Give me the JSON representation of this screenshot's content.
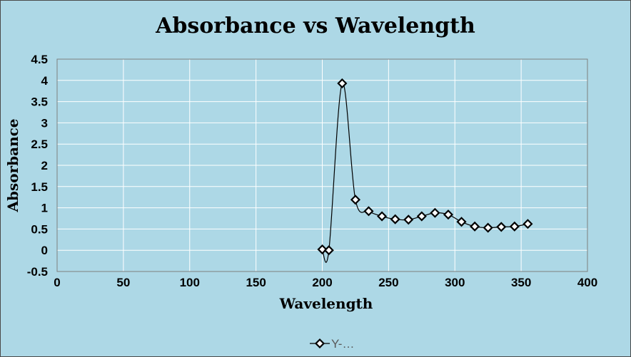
{
  "chart_data": {
    "type": "scatter",
    "title": "Absorbance vs Wavelength",
    "xlabel": "Wavelength",
    "ylabel": "Absorbance",
    "xlim": [
      0,
      400
    ],
    "ylim": [
      -0.5,
      4.5
    ],
    "x_ticks": [
      "0",
      "50",
      "100",
      "150",
      "200",
      "250",
      "300",
      "350",
      "400"
    ],
    "y_ticks": [
      "4.5",
      "4",
      "3.5",
      "3",
      "2.5",
      "2",
      "1.5",
      "1",
      "0.5",
      "0",
      "-0.5"
    ],
    "grid": true,
    "legend_position": "bottom",
    "marker": "diamond",
    "line": "smooth",
    "series": [
      {
        "name": "Y-…",
        "color": "#000000",
        "x": [
          200,
          205,
          215,
          225,
          235,
          245,
          255,
          265,
          275,
          285,
          295,
          305,
          315,
          325,
          335,
          345,
          355
        ],
        "y": [
          0.02,
          0.0,
          3.93,
          1.19,
          0.92,
          0.8,
          0.73,
          0.72,
          0.8,
          0.88,
          0.84,
          0.67,
          0.56,
          0.53,
          0.55,
          0.56,
          0.62
        ]
      }
    ],
    "colors": {
      "background": "#add8e6",
      "gridline": "#ffffff",
      "series": "#000000"
    }
  }
}
